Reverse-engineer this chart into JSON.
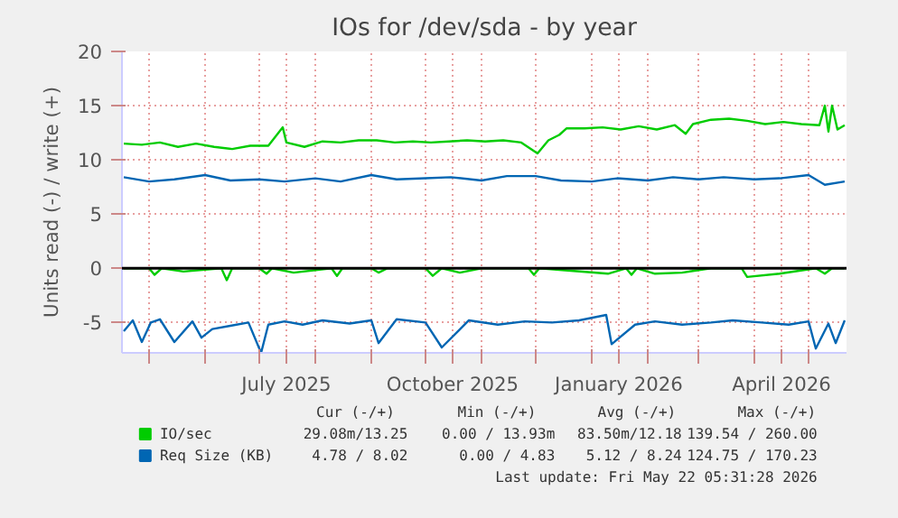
{
  "chart_data": {
    "type": "line",
    "title": "IOs for /dev/sda - by year",
    "ylabel": "Units read (-) / write (+)",
    "xlim": [
      "2025-04-16",
      "2026-05-22"
    ],
    "ylim": [
      -7.8,
      20
    ],
    "yticks": [
      -5,
      0,
      5,
      10,
      15,
      20
    ],
    "xticks": [
      {
        "value": "2025-05-01",
        "label": null
      },
      {
        "value": "2025-06-01",
        "label": null
      },
      {
        "value": "2025-07-01",
        "label": null
      },
      {
        "value": "2025-07-16",
        "label": "July 2025"
      },
      {
        "value": "2025-08-01",
        "label": null
      },
      {
        "value": "2025-09-01",
        "label": null
      },
      {
        "value": "2025-10-01",
        "label": null
      },
      {
        "value": "2025-10-16",
        "label": "October 2025"
      },
      {
        "value": "2025-11-01",
        "label": null
      },
      {
        "value": "2025-12-01",
        "label": null
      },
      {
        "value": "2026-01-01",
        "label": null
      },
      {
        "value": "2026-01-16",
        "label": "January 2026"
      },
      {
        "value": "2026-02-01",
        "label": null
      },
      {
        "value": "2026-03-01",
        "label": null
      },
      {
        "value": "2026-04-01",
        "label": null
      },
      {
        "value": "2026-04-16",
        "label": "April 2026"
      },
      {
        "value": "2026-05-01",
        "label": null
      }
    ],
    "grid": true,
    "legend": "bottom",
    "marker": "none",
    "line_style": "solid",
    "ref_lines": [
      {
        "axis": "y",
        "value": 0,
        "label": null,
        "color": "#000000"
      }
    ],
    "annotations": [
      "Cur (-/+)",
      "Min (-/+)",
      "Avg (-/+)",
      "Max (-/+)",
      "29.08m/13.25",
      "0.00 / 13.93m",
      "83.50m/12.18",
      "139.54 / 260.00",
      "4.78 / 8.02",
      "0.00 / 4.83",
      "5.12 / 8.24",
      "124.75 / 170.23",
      "Last update: Fri May 22 05:31:28 2026"
    ],
    "series": [
      {
        "name": "IO/sec",
        "color": "#00cc00",
        "x": [
          "2025-04-17",
          "2025-04-27",
          "2025-05-07",
          "2025-05-17",
          "2025-05-27",
          "2025-06-06",
          "2025-06-16",
          "2025-06-26",
          "2025-07-06",
          "2025-07-14",
          "2025-07-16",
          "2025-07-26",
          "2025-08-05",
          "2025-08-15",
          "2025-08-25",
          "2025-09-04",
          "2025-09-14",
          "2025-09-24",
          "2025-10-04",
          "2025-10-14",
          "2025-10-24",
          "2025-11-03",
          "2025-11-13",
          "2025-11-23",
          "2025-12-02",
          "2025-12-08",
          "2025-12-14",
          "2025-12-18",
          "2025-12-28",
          "2026-01-07",
          "2026-01-17",
          "2026-01-27",
          "2026-02-06",
          "2026-02-16",
          "2026-02-22",
          "2026-02-26",
          "2026-03-08",
          "2026-03-18",
          "2026-03-28",
          "2026-04-07",
          "2026-04-17",
          "2026-04-27",
          "2026-05-07",
          "2026-05-10",
          "2026-05-12",
          "2026-05-14",
          "2026-05-17",
          "2026-05-21"
        ],
        "values": [
          11.5,
          11.4,
          11.6,
          11.2,
          11.5,
          11.2,
          11.0,
          11.3,
          11.3,
          13.0,
          11.6,
          11.2,
          11.7,
          11.6,
          11.8,
          11.8,
          11.6,
          11.7,
          11.6,
          11.7,
          11.8,
          11.7,
          11.8,
          11.6,
          10.6,
          11.8,
          12.3,
          12.9,
          12.9,
          13.0,
          12.8,
          13.1,
          12.8,
          13.2,
          12.4,
          13.3,
          13.7,
          13.8,
          13.6,
          13.3,
          13.5,
          13.3,
          13.2,
          15.0,
          12.6,
          15.0,
          12.8,
          13.2
        ]
      },
      {
        "color": "#00cc00",
        "x": [
          "2025-04-17",
          "2025-05-01",
          "2025-05-04",
          "2025-05-08",
          "2025-05-20",
          "2025-06-10",
          "2025-06-13",
          "2025-06-16",
          "2025-07-01",
          "2025-07-05",
          "2025-07-08",
          "2025-07-20",
          "2025-08-10",
          "2025-08-13",
          "2025-08-16",
          "2025-09-01",
          "2025-09-05",
          "2025-09-10",
          "2025-10-01",
          "2025-10-05",
          "2025-10-10",
          "2025-10-20",
          "2025-11-01",
          "2025-11-27",
          "2025-11-30",
          "2025-12-03",
          "2026-01-10",
          "2026-01-20",
          "2026-01-23",
          "2026-01-26",
          "2026-02-05",
          "2026-02-20",
          "2026-03-08",
          "2026-03-25",
          "2026-03-28",
          "2026-04-15",
          "2026-05-05",
          "2026-05-10",
          "2026-05-14",
          "2026-05-21"
        ],
        "values": [
          0,
          0,
          -0.6,
          0,
          -0.3,
          0,
          -1.1,
          0,
          0,
          -0.5,
          0,
          -0.4,
          0,
          -0.7,
          0,
          0,
          -0.4,
          0,
          0,
          -0.7,
          0,
          -0.4,
          0,
          0,
          -0.6,
          0,
          -0.5,
          0,
          -0.6,
          0,
          -0.5,
          -0.4,
          0,
          0,
          -0.8,
          -0.5,
          0,
          -0.5,
          0,
          0
        ]
      },
      {
        "name": "Req Size (KB)",
        "color": "#0066b3",
        "x": [
          "2025-04-17",
          "2025-05-01",
          "2025-05-15",
          "2025-06-01",
          "2025-06-15",
          "2025-07-01",
          "2025-07-15",
          "2025-08-01",
          "2025-08-15",
          "2025-09-01",
          "2025-09-15",
          "2025-10-01",
          "2025-10-15",
          "2025-11-01",
          "2025-11-15",
          "2025-12-01",
          "2025-12-15",
          "2026-01-01",
          "2026-01-15",
          "2026-02-01",
          "2026-02-15",
          "2026-03-01",
          "2026-03-15",
          "2026-04-01",
          "2026-04-15",
          "2026-05-01",
          "2026-05-10",
          "2026-05-21"
        ],
        "values": [
          8.4,
          8.0,
          8.2,
          8.6,
          8.1,
          8.2,
          8.0,
          8.3,
          8.0,
          8.6,
          8.2,
          8.3,
          8.4,
          8.1,
          8.5,
          8.5,
          8.1,
          8.0,
          8.3,
          8.1,
          8.4,
          8.2,
          8.4,
          8.2,
          8.3,
          8.6,
          7.7,
          8.0
        ]
      },
      {
        "color": "#0066b3",
        "x": [
          "2025-04-17",
          "2025-04-22",
          "2025-04-27",
          "2025-05-02",
          "2025-05-07",
          "2025-05-15",
          "2025-05-25",
          "2025-05-30",
          "2025-06-05",
          "2025-06-15",
          "2025-06-25",
          "2025-07-02",
          "2025-07-06",
          "2025-07-15",
          "2025-07-25",
          "2025-08-05",
          "2025-08-20",
          "2025-09-01",
          "2025-09-05",
          "2025-09-15",
          "2025-10-01",
          "2025-10-10",
          "2025-10-25",
          "2025-11-10",
          "2025-11-25",
          "2025-12-10",
          "2025-12-25",
          "2026-01-09",
          "2026-01-12",
          "2026-01-25",
          "2026-02-05",
          "2026-02-20",
          "2026-03-08",
          "2026-03-20",
          "2026-04-05",
          "2026-04-20",
          "2026-05-01",
          "2026-05-05",
          "2026-05-12",
          "2026-05-16",
          "2026-05-21"
        ],
        "values": [
          -5.8,
          -4.8,
          -6.8,
          -5.0,
          -4.7,
          -6.8,
          -4.9,
          -6.4,
          -5.6,
          -5.3,
          -5.0,
          -7.8,
          -5.2,
          -4.9,
          -5.2,
          -4.8,
          -5.1,
          -4.8,
          -6.9,
          -4.7,
          -5.0,
          -7.3,
          -4.8,
          -5.2,
          -4.9,
          -5.0,
          -4.8,
          -4.3,
          -7.0,
          -5.2,
          -4.9,
          -5.2,
          -5.0,
          -4.8,
          -5.0,
          -5.2,
          -4.9,
          -7.4,
          -5.1,
          -6.9,
          -4.8
        ]
      }
    ]
  }
}
